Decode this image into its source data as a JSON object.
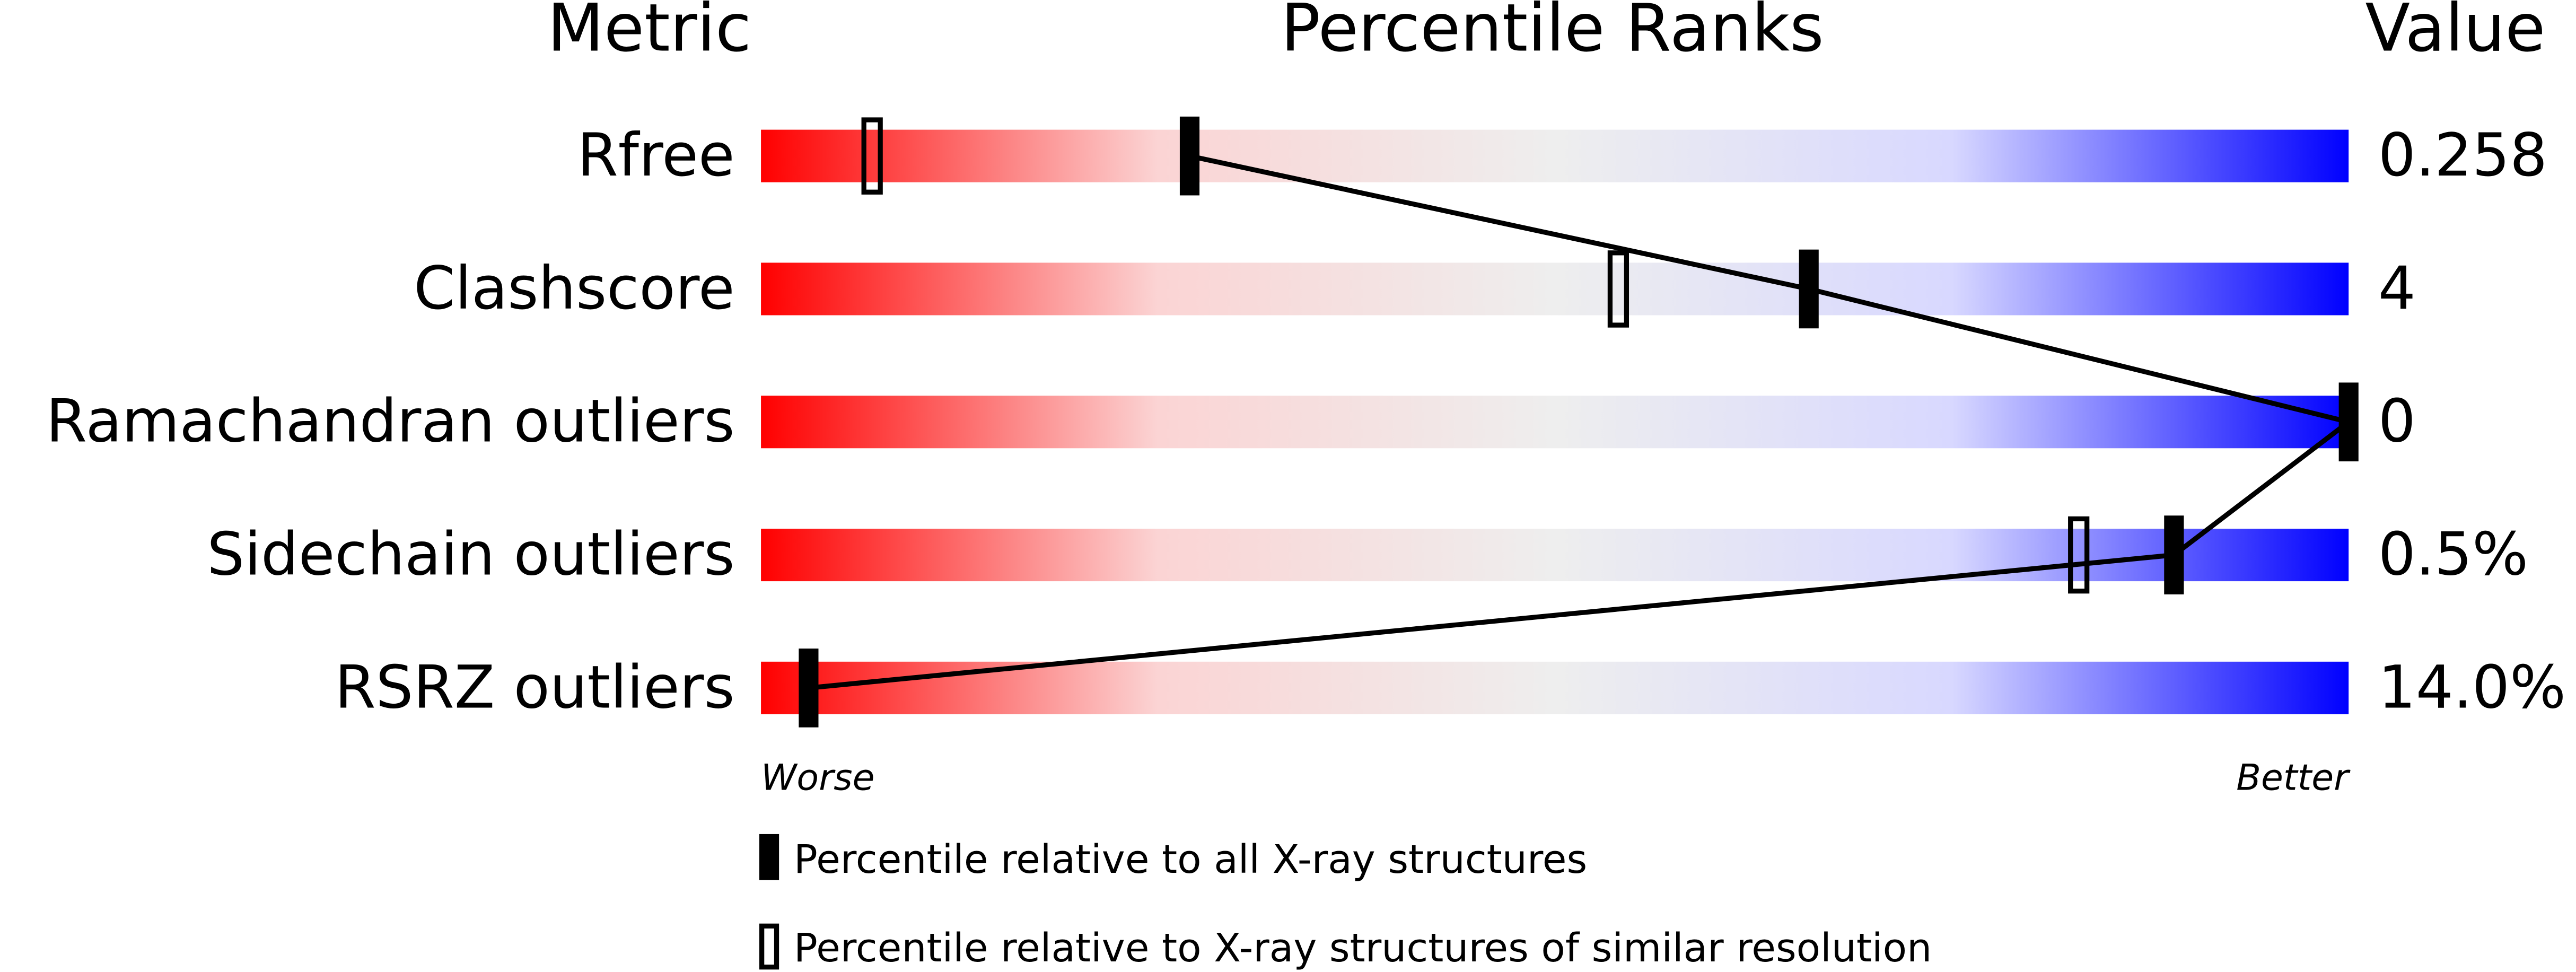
{
  "chart_data": {
    "type": "percentile-slider",
    "title": "Percentile Ranks",
    "metric_header": "Metric",
    "value_header": "Value",
    "categories": [
      "Rfree",
      "Clashscore",
      "Ramachandran outliers",
      "Sidechain outliers",
      "RSRZ outliers"
    ],
    "metric_values": [
      "0.258",
      "4",
      "0",
      "0.5%",
      "14.0%"
    ],
    "series": [
      {
        "name": "Percentile relative to all X-ray structures",
        "color": "#000000",
        "filled": true,
        "values": [
          27,
          66,
          100,
          89,
          3
        ]
      },
      {
        "name": "Percentile relative to X-ray structures of similar resolution",
        "color": "#000000",
        "filled": false,
        "values": [
          7,
          54,
          null,
          83,
          null
        ]
      }
    ],
    "xlim": [
      0,
      100
    ],
    "x_low_label": "Worse",
    "x_high_label": "Better",
    "gradient": [
      "#ff0000",
      "#fbd4d4",
      "#eeeeee",
      "#d8d8ff",
      "#0000ff"
    ]
  }
}
